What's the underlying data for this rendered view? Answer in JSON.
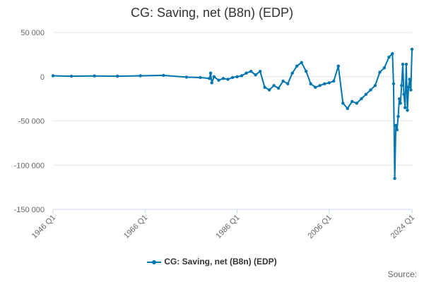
{
  "chart_data": {
    "type": "line",
    "title": "CG: Saving, net (B8n) (EDP)",
    "xlabel": "",
    "ylabel": "",
    "x_ticks": [
      "1946 Q1",
      "1966 Q1",
      "1986 Q1",
      "2006 Q1",
      "2024 Q1"
    ],
    "y_ticks": [
      50000,
      0,
      -50000,
      -100000,
      -150000
    ],
    "y_tick_labels": [
      "50 000",
      "0",
      "-50 000",
      "-100 000",
      "-150 000"
    ],
    "ylim": [
      -150000,
      50000
    ],
    "x_range": [
      "1946 Q1",
      "2024 Q1"
    ],
    "grid": "horizontal",
    "legend_position": "bottom",
    "series": [
      {
        "name": "CG: Saving, net (B8n) (EDP)",
        "color": "#0075b0",
        "marker": "circle",
        "points": [
          {
            "x": "1946 Q1",
            "y": 1000
          },
          {
            "x": "1950 Q1",
            "y": 500
          },
          {
            "x": "1955 Q1",
            "y": 800
          },
          {
            "x": "1960 Q1",
            "y": 500
          },
          {
            "x": "1965 Q1",
            "y": 1000
          },
          {
            "x": "1970 Q1",
            "y": 1500
          },
          {
            "x": "1975 Q1",
            "y": -500
          },
          {
            "x": "1978 Q1",
            "y": -1000
          },
          {
            "x": "1980 Q1",
            "y": -2000
          },
          {
            "x": "1980 Q2",
            "y": 4000
          },
          {
            "x": "1980 Q3",
            "y": -7000
          },
          {
            "x": "1981 Q1",
            "y": 0
          },
          {
            "x": "1982 Q1",
            "y": -4000
          },
          {
            "x": "1983 Q1",
            "y": -2000
          },
          {
            "x": "1984 Q1",
            "y": -3000
          },
          {
            "x": "1985 Q1",
            "y": -1000
          },
          {
            "x": "1986 Q1",
            "y": 0
          },
          {
            "x": "1987 Q1",
            "y": 1000
          },
          {
            "x": "1988 Q1",
            "y": 4000
          },
          {
            "x": "1989 Q1",
            "y": 6000
          },
          {
            "x": "1990 Q1",
            "y": 2000
          },
          {
            "x": "1991 Q1",
            "y": 6000
          },
          {
            "x": "1992 Q1",
            "y": -12000
          },
          {
            "x": "1993 Q1",
            "y": -15000
          },
          {
            "x": "1994 Q1",
            "y": -10000
          },
          {
            "x": "1995 Q1",
            "y": -13000
          },
          {
            "x": "1996 Q1",
            "y": -5000
          },
          {
            "x": "1997 Q1",
            "y": -8000
          },
          {
            "x": "1998 Q1",
            "y": 4000
          },
          {
            "x": "1999 Q1",
            "y": 12000
          },
          {
            "x": "2000 Q1",
            "y": 16000
          },
          {
            "x": "2001 Q1",
            "y": 6000
          },
          {
            "x": "2002 Q1",
            "y": -8000
          },
          {
            "x": "2003 Q1",
            "y": -12000
          },
          {
            "x": "2004 Q1",
            "y": -10000
          },
          {
            "x": "2005 Q1",
            "y": -8000
          },
          {
            "x": "2006 Q1",
            "y": -7000
          },
          {
            "x": "2007 Q1",
            "y": -5000
          },
          {
            "x": "2008 Q1",
            "y": 12000
          },
          {
            "x": "2009 Q1",
            "y": -30000
          },
          {
            "x": "2010 Q1",
            "y": -36000
          },
          {
            "x": "2011 Q1",
            "y": -28000
          },
          {
            "x": "2012 Q1",
            "y": -30000
          },
          {
            "x": "2013 Q1",
            "y": -25000
          },
          {
            "x": "2014 Q1",
            "y": -20000
          },
          {
            "x": "2015 Q1",
            "y": -15000
          },
          {
            "x": "2016 Q1",
            "y": -10000
          },
          {
            "x": "2017 Q1",
            "y": 5000
          },
          {
            "x": "2018 Q1",
            "y": 10000
          },
          {
            "x": "2019 Q1",
            "y": 22000
          },
          {
            "x": "2019 Q4",
            "y": 26000
          },
          {
            "x": "2020 Q1",
            "y": -8000
          },
          {
            "x": "2020 Q2",
            "y": -115000
          },
          {
            "x": "2020 Q3",
            "y": -55000
          },
          {
            "x": "2020 Q4",
            "y": -60000
          },
          {
            "x": "2021 Q1",
            "y": -45000
          },
          {
            "x": "2021 Q2",
            "y": -25000
          },
          {
            "x": "2021 Q3",
            "y": -30000
          },
          {
            "x": "2021 Q4",
            "y": -10000
          },
          {
            "x": "2022 Q1",
            "y": 14000
          },
          {
            "x": "2022 Q2",
            "y": -20000
          },
          {
            "x": "2022 Q3",
            "y": -35000
          },
          {
            "x": "2022 Q4",
            "y": 14000
          },
          {
            "x": "2023 Q1",
            "y": -38000
          },
          {
            "x": "2023 Q2",
            "y": -12000
          },
          {
            "x": "2023 Q3",
            "y": -3000
          },
          {
            "x": "2023 Q4",
            "y": -15000
          },
          {
            "x": "2024 Q1",
            "y": 31000
          }
        ]
      }
    ]
  },
  "legend": {
    "label": "CG: Saving, net (B8n) (EDP)"
  },
  "source_label": "Source:"
}
